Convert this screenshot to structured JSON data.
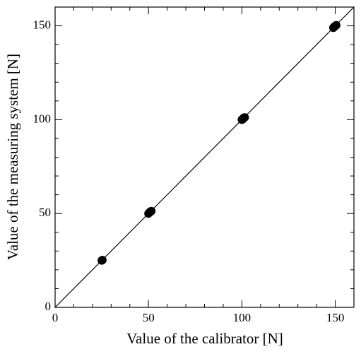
{
  "chart_data": {
    "type": "scatter",
    "xlabel": "Value of the calibrator [N]",
    "ylabel": "Value of the measuring system [N]",
    "x": [
      25,
      25.3,
      50,
      50.5,
      51,
      51.5,
      100,
      100.5,
      101,
      101.5,
      149,
      149.5,
      150,
      150.5
    ],
    "values": [
      25,
      25.2,
      50,
      50.5,
      51,
      51.3,
      100,
      100.3,
      101,
      101.2,
      149,
      149.5,
      150,
      150.3
    ],
    "color": "#000000",
    "line": {
      "x": [
        0,
        160
      ],
      "y": [
        0,
        160
      ]
    },
    "xlim": [
      0,
      160
    ],
    "ylim": [
      0,
      160
    ],
    "xticks": [
      0,
      50,
      100,
      150
    ],
    "yticks": [
      0,
      50,
      100,
      150
    ],
    "minor_ticks": [
      10,
      20,
      30,
      40,
      60,
      70,
      80,
      90,
      110,
      120,
      130,
      140
    ]
  }
}
